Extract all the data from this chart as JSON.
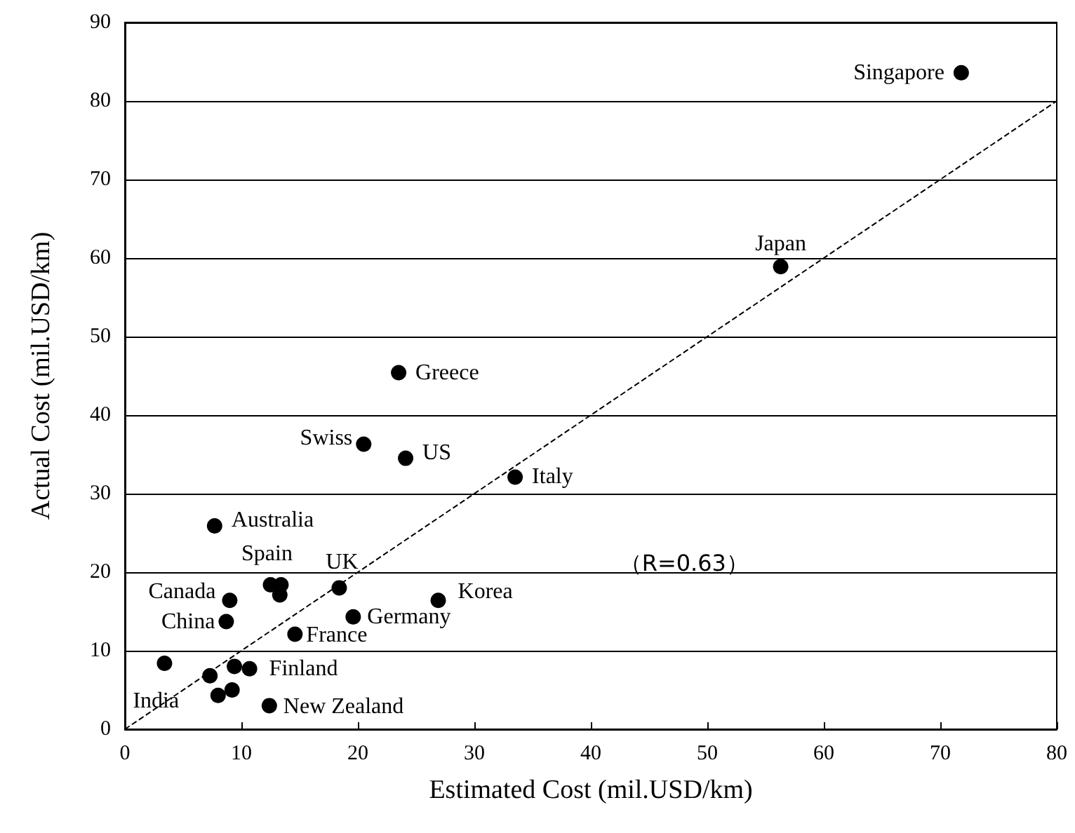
{
  "chart_data": {
    "type": "scatter",
    "xlabel": "Estimated Cost (mil.USD/km)",
    "ylabel": "Actual Cost (mil.USD/km)",
    "xlim": [
      0,
      80
    ],
    "xticks": [
      0,
      10,
      20,
      30,
      40,
      50,
      60,
      70,
      80
    ],
    "ylim": [
      0,
      90
    ],
    "yticks": [
      0,
      10,
      20,
      30,
      40,
      50,
      60,
      70,
      80,
      90
    ],
    "grid": "y",
    "marker": "circle",
    "series": [
      {
        "color": "#000000",
        "x": [
          71.8,
          56.3,
          23.5,
          20.5,
          24.1,
          33.5,
          7.7,
          12.5,
          13.4,
          13.3,
          18.4,
          9.0,
          26.9,
          8.7,
          19.6,
          14.6,
          3.4,
          7.3,
          9.4,
          10.7,
          8.0,
          9.2,
          12.4
        ],
        "values": [
          83.6,
          58.9,
          45.4,
          36.3,
          34.5,
          32.1,
          25.9,
          18.4,
          18.4,
          17.1,
          18.0,
          16.4,
          16.4,
          13.7,
          14.3,
          12.1,
          8.4,
          6.8,
          8.0,
          7.7,
          4.3,
          5.0,
          3.0
        ]
      },
      {
        "type": "line",
        "color": "#000000",
        "line_style": "dashed",
        "marker": "none",
        "x": [
          0,
          80
        ],
        "values": [
          0,
          80
        ]
      }
    ],
    "annotations": [
      {
        "text": "Singapore",
        "x": 71.8,
        "y": 83.6
      },
      {
        "text": "Japan",
        "x": 56.3,
        "y": 58.9
      },
      {
        "text": "Greece",
        "x": 23.5,
        "y": 45.4
      },
      {
        "text": "Swiss",
        "x": 20.5,
        "y": 36.3
      },
      {
        "text": "US",
        "x": 24.1,
        "y": 34.5
      },
      {
        "text": "Italy",
        "x": 33.5,
        "y": 32.1
      },
      {
        "text": "Australia",
        "x": 7.7,
        "y": 25.9
      },
      {
        "text": "Spain",
        "x": 13.4,
        "y": 18.4
      },
      {
        "text": "UK",
        "x": 18.4,
        "y": 18.0
      },
      {
        "text": "Canada",
        "x": 9.0,
        "y": 16.4
      },
      {
        "text": "Korea",
        "x": 26.9,
        "y": 16.4
      },
      {
        "text": "China",
        "x": 8.7,
        "y": 13.7
      },
      {
        "text": "Germany",
        "x": 19.6,
        "y": 14.3
      },
      {
        "text": "France",
        "x": 14.6,
        "y": 12.1
      },
      {
        "text": "India",
        "x": 7.3,
        "y": 6.8
      },
      {
        "text": "Finland",
        "x": 10.7,
        "y": 7.7
      },
      {
        "text": "New Zealand",
        "x": 12.4,
        "y": 3.0
      },
      "（R=0.63）"
    ]
  }
}
